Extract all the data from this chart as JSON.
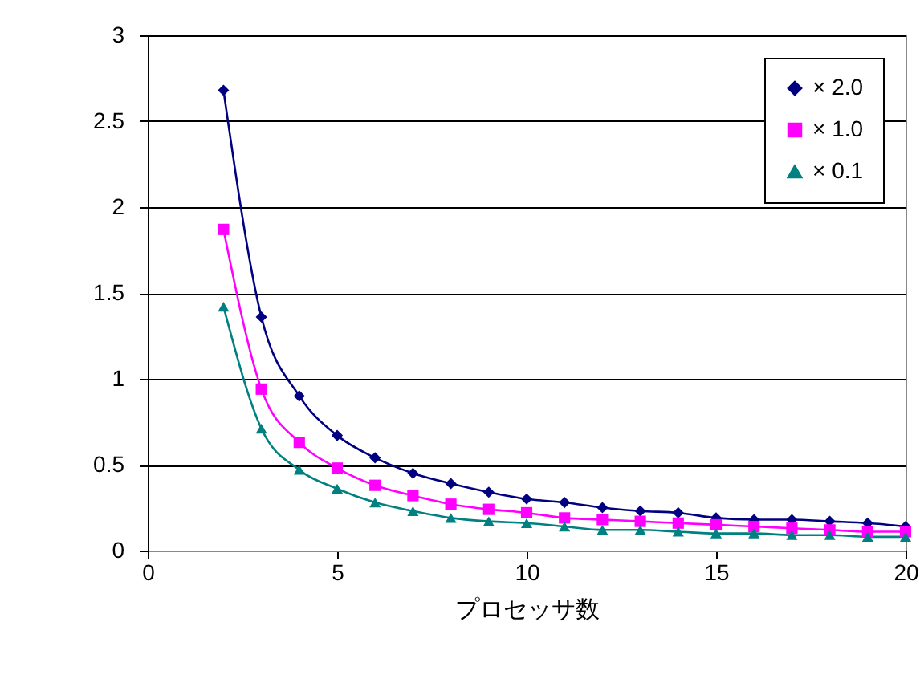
{
  "chart_data": {
    "type": "line",
    "xlabel": "プロセッサ数",
    "x": [
      2,
      3,
      4,
      5,
      6,
      7,
      8,
      9,
      10,
      11,
      12,
      13,
      14,
      15,
      16,
      17,
      18,
      19,
      20
    ],
    "series": [
      {
        "name": "× 2.0",
        "color": "#000080",
        "marker": "diamond",
        "values": [
          2.68,
          1.36,
          0.9,
          0.67,
          0.54,
          0.45,
          0.39,
          0.34,
          0.3,
          0.28,
          0.25,
          0.23,
          0.22,
          0.19,
          0.18,
          0.18,
          0.17,
          0.16,
          0.14
        ]
      },
      {
        "name": "× 1.0",
        "color": "#ff00ff",
        "marker": "square",
        "values": [
          1.87,
          0.94,
          0.63,
          0.48,
          0.38,
          0.32,
          0.27,
          0.24,
          0.22,
          0.19,
          0.18,
          0.17,
          0.16,
          0.15,
          0.14,
          0.13,
          0.12,
          0.11,
          0.11
        ]
      },
      {
        "name": "× 0.1",
        "color": "#008080",
        "marker": "triangle",
        "values": [
          1.42,
          0.71,
          0.47,
          0.36,
          0.28,
          0.23,
          0.19,
          0.17,
          0.16,
          0.14,
          0.12,
          0.12,
          0.11,
          0.1,
          0.1,
          0.09,
          0.09,
          0.08,
          0.08
        ]
      }
    ],
    "xlim": [
      0,
      20
    ],
    "xticks": [
      0,
      5,
      10,
      15,
      20
    ],
    "ylim": [
      0,
      3
    ],
    "yticks": [
      0,
      0.5,
      1,
      1.5,
      2,
      2.5,
      3
    ],
    "grid": "y",
    "legend": "top right",
    "line_style": "solid"
  }
}
